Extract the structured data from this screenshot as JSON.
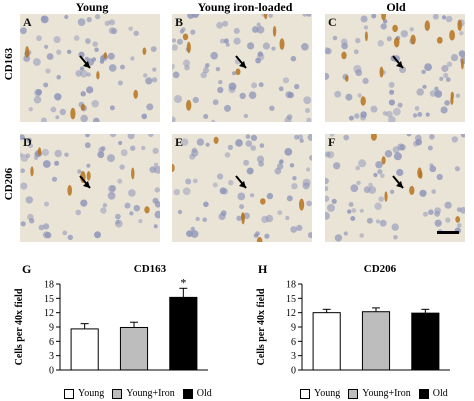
{
  "column_headers": [
    "Young",
    "Young iron-loaded",
    "Old"
  ],
  "row_labels": [
    "CD163",
    "CD206"
  ],
  "panels": [
    {
      "letter": "A"
    },
    {
      "letter": "B"
    },
    {
      "letter": "C"
    },
    {
      "letter": "D"
    },
    {
      "letter": "E"
    },
    {
      "letter": "F"
    }
  ],
  "colors": {
    "young": "#ffffff",
    "young_iron": "#bdbdbd",
    "old": "#000000",
    "tissue_bg": "#eae4d6",
    "nucleus": "#8c93b8",
    "stain": "#b5731f"
  },
  "chart_data": [
    {
      "letter": "G",
      "type": "bar",
      "title": "CD163",
      "ylabel": "Cells per 40x field",
      "categories": [
        "Young",
        "Young+Iron",
        "Old"
      ],
      "values": [
        8.6,
        8.9,
        15.2
      ],
      "errors": [
        1.1,
        1.1,
        1.9
      ],
      "ylim": [
        0,
        18
      ],
      "yticks": [
        0,
        3,
        6,
        9,
        12,
        15,
        18
      ],
      "annotations": [
        "",
        "",
        "*"
      ]
    },
    {
      "letter": "H",
      "type": "bar",
      "title": "CD206",
      "ylabel": "Cells per 40x field",
      "categories": [
        "Young",
        "Young+Iron",
        "Old"
      ],
      "values": [
        12.0,
        12.2,
        11.9
      ],
      "errors": [
        0.7,
        0.8,
        0.8
      ],
      "ylim": [
        0,
        18
      ],
      "yticks": [
        0,
        3,
        6,
        9,
        12,
        15,
        18
      ],
      "annotations": [
        "",
        "",
        ""
      ]
    }
  ],
  "legend": [
    "Young",
    "Young+Iron",
    "Old"
  ]
}
